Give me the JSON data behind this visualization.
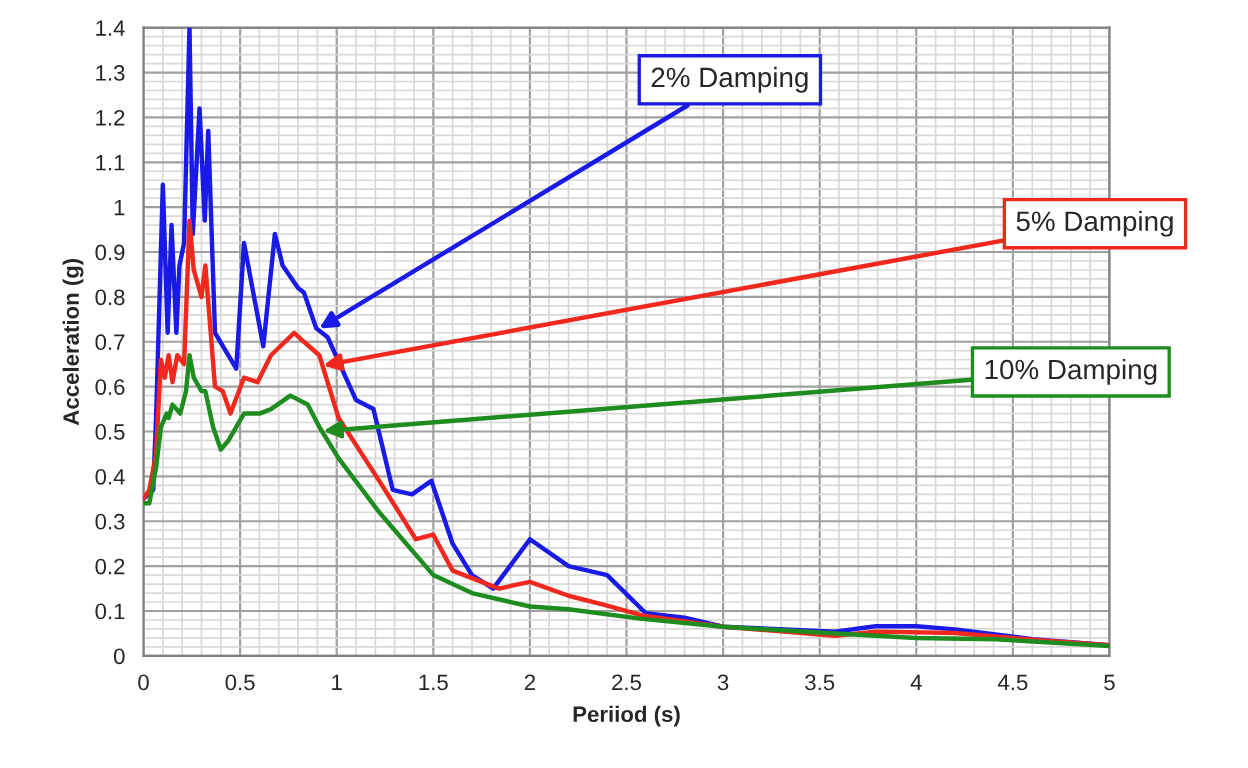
{
  "chart_data": {
    "type": "line",
    "xlabel": "Periiod (s)",
    "ylabel": "Acceleration (g)",
    "xlim": [
      0,
      5
    ],
    "ylim": [
      0,
      1.4
    ],
    "xticks": [
      0,
      0.5,
      1,
      1.5,
      2,
      2.5,
      3,
      3.5,
      4,
      4.5,
      5
    ],
    "yticks": [
      0,
      0.1,
      0.2,
      0.3,
      0.4,
      0.5,
      0.6,
      0.7,
      0.8,
      0.9,
      1,
      1.1,
      1.2,
      1.3,
      1.4
    ],
    "grid": true,
    "marker": "none",
    "line_style": "solid",
    "series": [
      {
        "name": "2% Damping",
        "color": "#1a1ae6",
        "x": [
          0,
          0.05,
          0.065,
          0.1,
          0.125,
          0.145,
          0.17,
          0.186,
          0.21,
          0.238,
          0.255,
          0.29,
          0.317,
          0.335,
          0.37,
          0.48,
          0.52,
          0.62,
          0.68,
          0.72,
          0.8,
          0.83,
          0.894,
          0.953,
          1.1,
          1.19,
          1.29,
          1.39,
          1.49,
          1.6,
          1.7,
          1.81,
          2.0,
          2.2,
          2.4,
          2.6,
          2.8,
          3.0,
          3.58,
          3.79,
          4.0,
          4.2,
          4.41,
          4.6,
          5.0
        ],
        "values": [
          0.35,
          0.37,
          0.53,
          1.05,
          0.72,
          0.96,
          0.72,
          0.87,
          0.92,
          1.4,
          0.94,
          1.22,
          0.97,
          1.17,
          0.72,
          0.64,
          0.92,
          0.69,
          0.94,
          0.87,
          0.82,
          0.81,
          0.73,
          0.71,
          0.57,
          0.55,
          0.37,
          0.36,
          0.39,
          0.25,
          0.18,
          0.15,
          0.26,
          0.2,
          0.18,
          0.095,
          0.085,
          0.065,
          0.054,
          0.066,
          0.066,
          0.059,
          0.048,
          0.037,
          0.024
        ]
      },
      {
        "name": "5% Damping",
        "color": "#f0281e",
        "x": [
          0,
          0.03,
          0.065,
          0.09,
          0.11,
          0.13,
          0.15,
          0.175,
          0.21,
          0.238,
          0.26,
          0.3,
          0.32,
          0.37,
          0.41,
          0.45,
          0.52,
          0.59,
          0.66,
          0.78,
          0.83,
          0.91,
          1.01,
          1.22,
          1.41,
          1.5,
          1.6,
          1.84,
          2.0,
          2.2,
          2.4,
          2.58,
          3.0,
          3.58,
          3.79,
          4.2,
          4.6,
          5.0
        ],
        "values": [
          0.35,
          0.37,
          0.45,
          0.66,
          0.62,
          0.67,
          0.61,
          0.67,
          0.65,
          0.97,
          0.86,
          0.8,
          0.87,
          0.6,
          0.59,
          0.54,
          0.62,
          0.61,
          0.67,
          0.72,
          0.7,
          0.67,
          0.53,
          0.39,
          0.26,
          0.27,
          0.19,
          0.15,
          0.165,
          0.134,
          0.112,
          0.09,
          0.065,
          0.045,
          0.054,
          0.051,
          0.036,
          0.024
        ]
      },
      {
        "name": "10% Damping",
        "color": "#1e8c1e",
        "x": [
          0,
          0.03,
          0.065,
          0.09,
          0.12,
          0.13,
          0.15,
          0.19,
          0.22,
          0.238,
          0.26,
          0.3,
          0.32,
          0.36,
          0.4,
          0.44,
          0.52,
          0.6,
          0.66,
          0.76,
          0.85,
          0.91,
          1.01,
          1.22,
          1.5,
          1.7,
          2.0,
          2.2,
          2.57,
          3.0,
          3.58,
          4.0,
          4.41,
          5.0
        ],
        "values": [
          0.34,
          0.34,
          0.42,
          0.51,
          0.54,
          0.53,
          0.56,
          0.54,
          0.59,
          0.67,
          0.62,
          0.59,
          0.59,
          0.51,
          0.46,
          0.48,
          0.54,
          0.54,
          0.55,
          0.58,
          0.56,
          0.51,
          0.44,
          0.32,
          0.18,
          0.14,
          0.11,
          0.104,
          0.083,
          0.065,
          0.05,
          0.04,
          0.037,
          0.022
        ]
      }
    ]
  }
}
